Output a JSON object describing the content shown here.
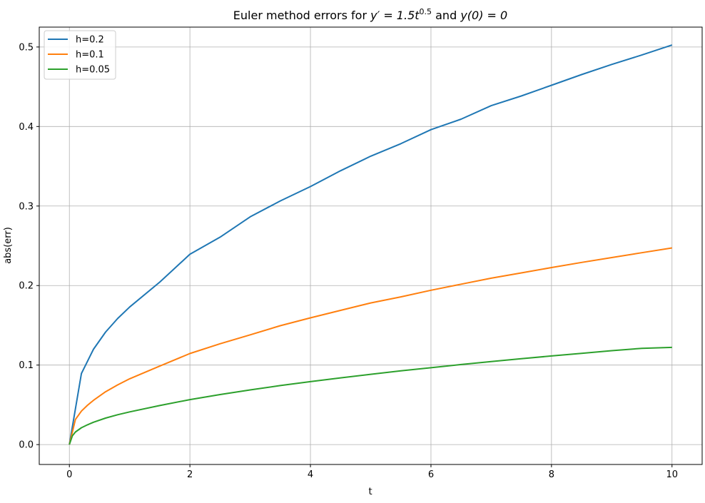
{
  "chart_data": {
    "type": "line",
    "title": {
      "prefix": "Euler method errors for ",
      "equation_lhs": "y′ = 1.5t",
      "equation_exp": "0.5",
      "connector": " and ",
      "condition": "y(0) = 0"
    },
    "xlabel": "t",
    "ylabel": "abs(err)",
    "xlim": [
      -0.5,
      10.5
    ],
    "ylim": [
      -0.025,
      0.525
    ],
    "xticks": [
      0,
      2,
      4,
      6,
      8,
      10
    ],
    "xtick_labels": [
      "0",
      "2",
      "4",
      "6",
      "8",
      "10"
    ],
    "yticks": [
      0.0,
      0.1,
      0.2,
      0.3,
      0.4,
      0.5
    ],
    "ytick_labels": [
      "0.0",
      "0.1",
      "0.2",
      "0.3",
      "0.4",
      "0.5"
    ],
    "grid": true,
    "legend_position": "top-left",
    "series": [
      {
        "name": "h=0.2",
        "color": "#1f77b4",
        "x": [
          0,
          0.2,
          0.4,
          0.6,
          0.8,
          1,
          1.5,
          2,
          2.5,
          3,
          3.5,
          4,
          4.5,
          5,
          5.5,
          6,
          6.5,
          7,
          7.5,
          8,
          8.5,
          9,
          9.5,
          10
        ],
        "y": [
          0,
          0.0894,
          0.1199,
          0.1414,
          0.1585,
          0.173,
          0.2043,
          0.2393,
          0.2609,
          0.2864,
          0.3064,
          0.3245,
          0.3444,
          0.3627,
          0.3784,
          0.3961,
          0.4093,
          0.4262,
          0.4384,
          0.4519,
          0.4653,
          0.4781,
          0.4899,
          0.5025
        ]
      },
      {
        "name": "h=0.1",
        "color": "#ff7f0e",
        "x": [
          0,
          0.1,
          0.2,
          0.3,
          0.4,
          0.6,
          0.8,
          1,
          1.5,
          2,
          2.5,
          3,
          3.5,
          4,
          4.5,
          5,
          5.5,
          6,
          6.5,
          7,
          7.5,
          8,
          8.5,
          9,
          9.5,
          10
        ],
        "y": [
          0,
          0.0316,
          0.0421,
          0.0495,
          0.0557,
          0.0664,
          0.075,
          0.0828,
          0.0987,
          0.1145,
          0.1268,
          0.138,
          0.1495,
          0.1594,
          0.1688,
          0.1781,
          0.1858,
          0.1941,
          0.2017,
          0.2093,
          0.2159,
          0.2226,
          0.2291,
          0.2352,
          0.2413,
          0.2473
        ]
      },
      {
        "name": "h=0.05",
        "color": "#2ca02c",
        "x": [
          0,
          0.05,
          0.1,
          0.2,
          0.3,
          0.4,
          0.6,
          0.8,
          1,
          1.5,
          2,
          2.5,
          3,
          3.5,
          4,
          4.5,
          5,
          5.5,
          6,
          6.5,
          7,
          7.5,
          8,
          8.5,
          9,
          9.5,
          10
        ],
        "y": [
          0,
          0.0112,
          0.0158,
          0.0212,
          0.0249,
          0.0281,
          0.0333,
          0.0375,
          0.0411,
          0.0491,
          0.0566,
          0.0629,
          0.0688,
          0.0742,
          0.0792,
          0.0839,
          0.0884,
          0.0927,
          0.0967,
          0.1007,
          0.1044,
          0.108,
          0.1115,
          0.1148,
          0.1181,
          0.1211,
          0.1222
        ]
      }
    ]
  }
}
